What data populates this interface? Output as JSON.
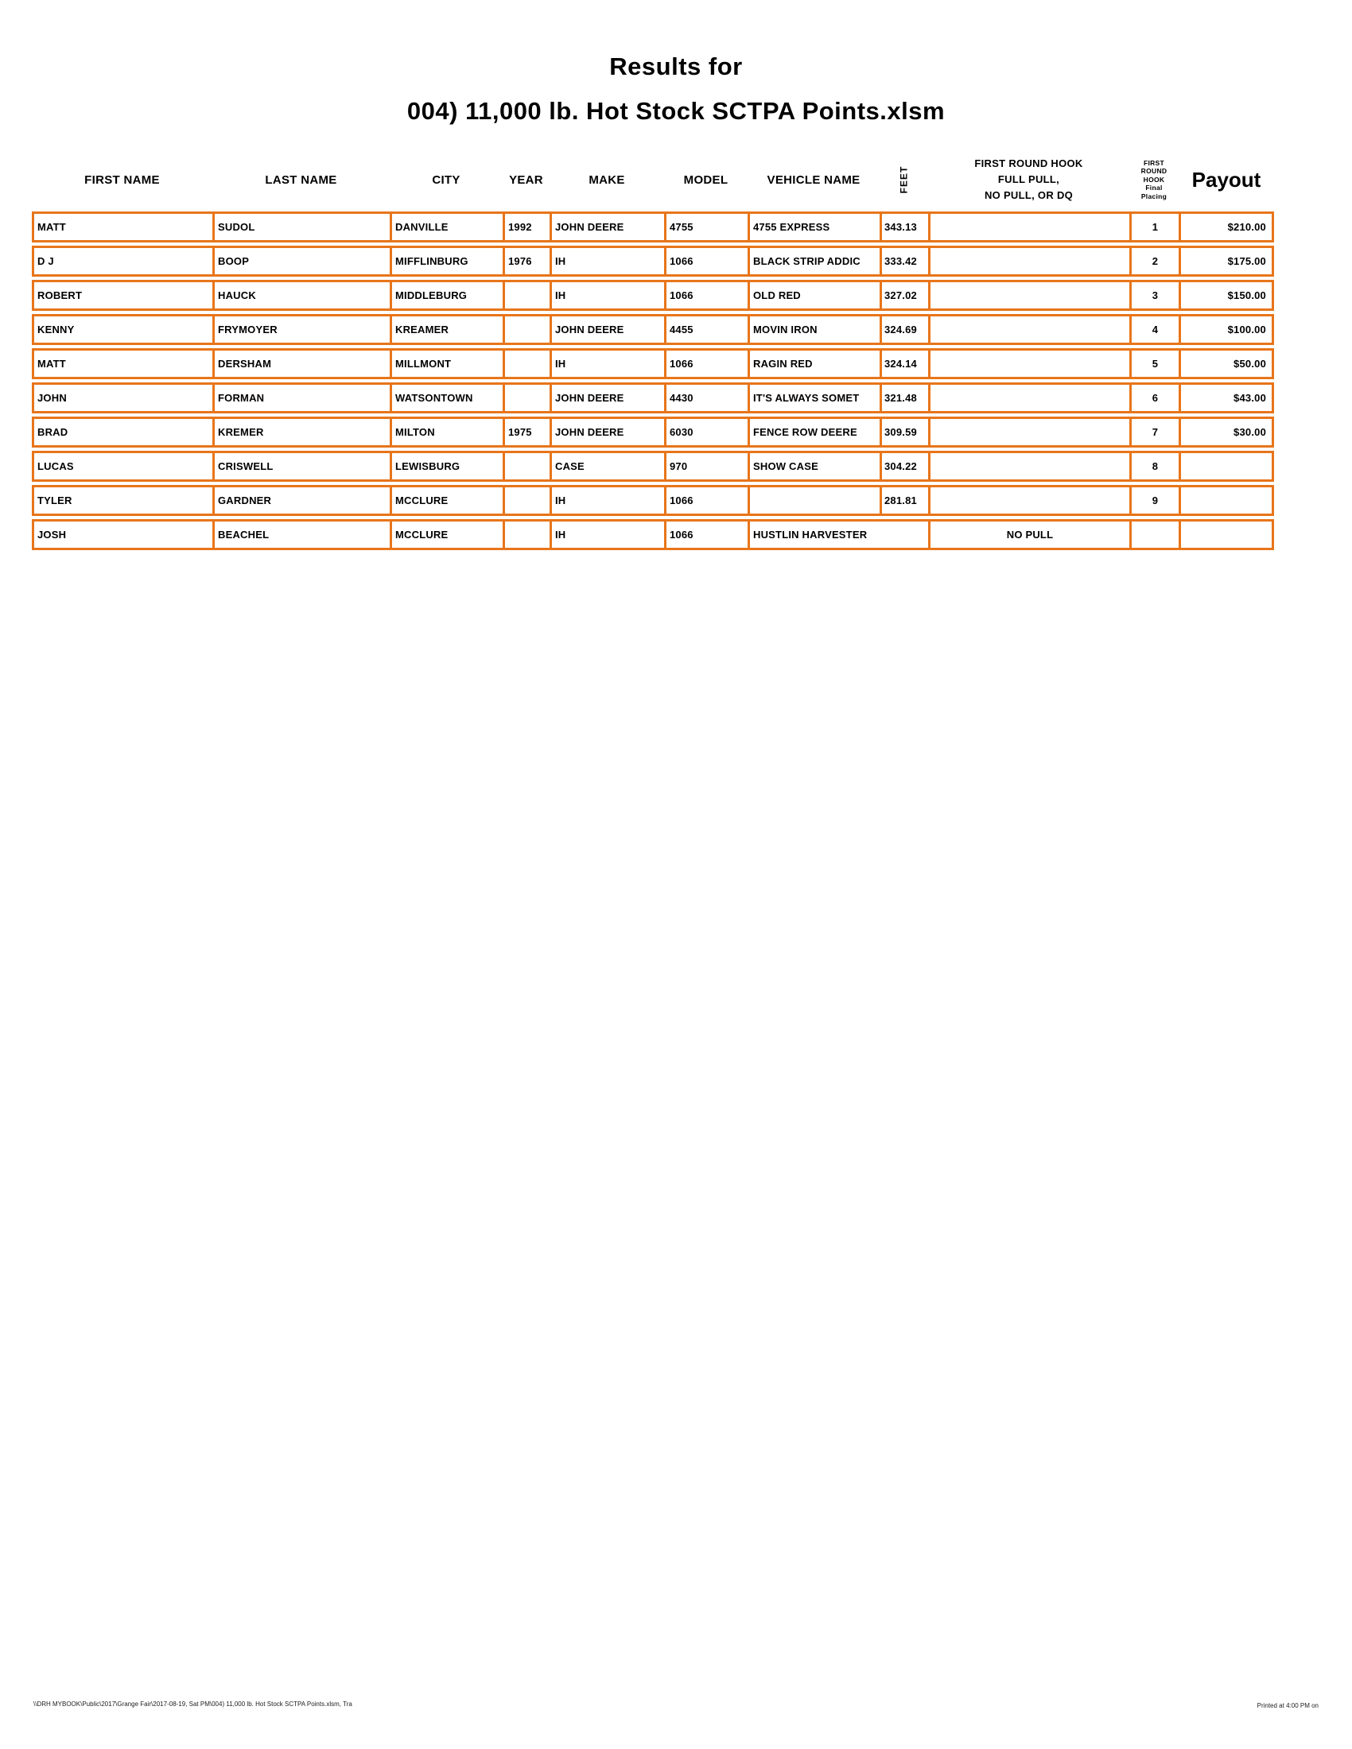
{
  "title": {
    "line1": "Results for",
    "line2": "004) 11,000 lb. Hot Stock SCTPA Points.xlsm"
  },
  "colors": {
    "border": "#E8751A"
  },
  "table": {
    "headers": {
      "first_name": "FIRST NAME",
      "last_name": "LAST NAME",
      "city": "CITY",
      "year": "YEAR",
      "make": "MAKE",
      "model": "MODEL",
      "vehicle_name": "VEHICLE NAME",
      "feet": "FEET",
      "hook_line1": "FIRST ROUND HOOK",
      "hook_line2": "FULL PULL,",
      "hook_line3": "NO PULL, OR DQ",
      "placing_line1": "FIRST",
      "placing_line2": "ROUND",
      "placing_line3": "HOOK",
      "placing_line4": "Final",
      "placing_line5": "Placing",
      "payout": "Payout"
    },
    "rows": [
      {
        "first": "MATT",
        "last": "SUDOL",
        "city": "DANVILLE",
        "year": "1992",
        "make": "JOHN DEERE",
        "model": "4755",
        "vehicle": "4755 EXPRESS",
        "feet": "343.13",
        "hook": "",
        "placing": "1",
        "payout": "$210.00"
      },
      {
        "first": "D J",
        "last": "BOOP",
        "city": "MIFFLINBURG",
        "year": "1976",
        "make": "IH",
        "model": "1066",
        "vehicle": "BLACK STRIP ADDIC",
        "feet": "333.42",
        "hook": "",
        "placing": "2",
        "payout": "$175.00"
      },
      {
        "first": "ROBERT",
        "last": "HAUCK",
        "city": "MIDDLEBURG",
        "year": "",
        "make": "IH",
        "model": "1066",
        "vehicle": "OLD RED",
        "feet": "327.02",
        "hook": "",
        "placing": "3",
        "payout": "$150.00"
      },
      {
        "first": "KENNY",
        "last": "FRYMOYER",
        "city": "KREAMER",
        "year": "",
        "make": "JOHN DEERE",
        "model": "4455",
        "vehicle": "MOVIN IRON",
        "feet": "324.69",
        "hook": "",
        "placing": "4",
        "payout": "$100.00"
      },
      {
        "first": "MATT",
        "last": "DERSHAM",
        "city": "MILLMONT",
        "year": "",
        "make": "IH",
        "model": "1066",
        "vehicle": "RAGIN RED",
        "feet": "324.14",
        "hook": "",
        "placing": "5",
        "payout": "$50.00"
      },
      {
        "first": "JOHN",
        "last": "FORMAN",
        "city": "WATSONTOWN",
        "year": "",
        "make": "JOHN DEERE",
        "model": "4430",
        "vehicle": "IT'S ALWAYS SOMET",
        "feet": "321.48",
        "hook": "",
        "placing": "6",
        "payout": "$43.00"
      },
      {
        "first": "BRAD",
        "last": "KREMER",
        "city": "MILTON",
        "year": "1975",
        "make": "JOHN DEERE",
        "model": "6030",
        "vehicle": "FENCE ROW DEERE",
        "feet": "309.59",
        "hook": "",
        "placing": "7",
        "payout": "$30.00"
      },
      {
        "first": "LUCAS",
        "last": "CRISWELL",
        "city": "LEWISBURG",
        "year": "",
        "make": "CASE",
        "model": "970",
        "vehicle": "SHOW CASE",
        "feet": "304.22",
        "hook": "",
        "placing": "8",
        "payout": ""
      },
      {
        "first": "TYLER",
        "last": "GARDNER",
        "city": "MCCLURE",
        "year": "",
        "make": "IH",
        "model": "1066",
        "vehicle": "",
        "feet": "281.81",
        "hook": "",
        "placing": "9",
        "payout": ""
      },
      {
        "first": "JOSH",
        "last": "BEACHEL",
        "city": "MCCLURE",
        "year": "",
        "make": "IH",
        "model": "1066",
        "vehicle": "HUSTLIN HARVESTER",
        "feet": "",
        "hook": "NO PULL",
        "placing": "",
        "payout": ""
      }
    ]
  },
  "footer": {
    "left": "\\\\DRH MYBOOK\\Public\\2017\\Grange Fair\\2017-08-19, Sat PM\\004) 11,000 lb. Hot Stock SCTPA Points.xlsm, Tra",
    "right": "Printed at 4:00 PM on"
  }
}
